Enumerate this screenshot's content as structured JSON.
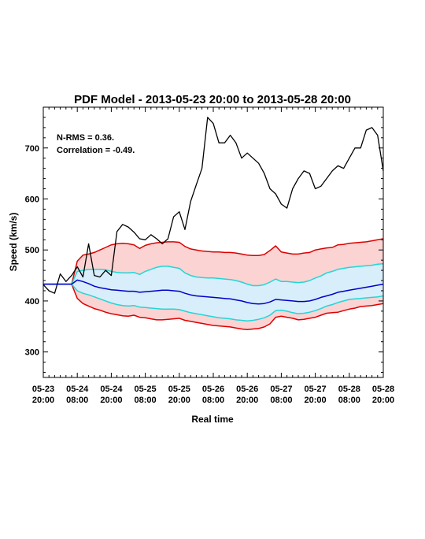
{
  "chart_data": {
    "type": "line",
    "title": "PDF Model - 2013-05-23 20:00 to 2013-05-28 20:00",
    "xlabel": "Real time",
    "ylabel": "Speed (km/s)",
    "xlim": [
      0,
      120
    ],
    "ylim": [
      250,
      780
    ],
    "y_ticks": [
      300,
      400,
      500,
      600,
      700
    ],
    "x_ticks": [
      {
        "h": 0,
        "line1": "05-23",
        "line2": "20:00"
      },
      {
        "h": 12,
        "line1": "05-24",
        "line2": "08:00"
      },
      {
        "h": 24,
        "line1": "05-24",
        "line2": "20:00"
      },
      {
        "h": 36,
        "line1": "05-25",
        "line2": "08:00"
      },
      {
        "h": 48,
        "line1": "05-25",
        "line2": "20:00"
      },
      {
        "h": 60,
        "line1": "05-26",
        "line2": "08:00"
      },
      {
        "h": 72,
        "line1": "05-26",
        "line2": "20:00"
      },
      {
        "h": 84,
        "line1": "05-27",
        "line2": "08:00"
      },
      {
        "h": 96,
        "line1": "05-27",
        "line2": "20:00"
      },
      {
        "h": 108,
        "line1": "05-28",
        "line2": "08:00"
      },
      {
        "h": 120,
        "line1": "05-28",
        "line2": "20:00"
      }
    ],
    "annotations": [
      "N-RMS = 0.36.",
      "Correlation = -0.49."
    ],
    "x_hours": [
      0,
      2,
      4,
      6,
      8,
      10,
      12,
      14,
      16,
      18,
      20,
      22,
      24,
      26,
      28,
      30,
      32,
      34,
      36,
      38,
      40,
      42,
      44,
      46,
      48,
      50,
      52,
      54,
      56,
      58,
      60,
      62,
      64,
      66,
      68,
      70,
      72,
      74,
      76,
      78,
      80,
      82,
      84,
      86,
      88,
      90,
      92,
      94,
      96,
      98,
      100,
      102,
      104,
      106,
      108,
      110,
      112,
      114,
      116,
      118,
      120
    ],
    "series": [
      {
        "role": "outer_upper",
        "color": "#dd0000",
        "values": [
          433,
          433,
          433,
          433,
          433,
          433,
          478,
          490,
          492,
          495,
          500,
          505,
          510,
          512,
          513,
          512,
          510,
          503,
          509,
          512,
          514,
          515,
          516,
          516,
          515,
          507,
          502,
          500,
          498,
          497,
          496,
          496,
          495,
          495,
          494,
          492,
          490,
          489,
          489,
          491,
          499,
          508,
          496,
          494,
          492,
          492,
          494,
          495,
          500,
          502,
          504,
          505,
          510,
          511,
          513,
          514,
          515,
          516,
          518,
          520,
          522
        ]
      },
      {
        "role": "outer_lower",
        "color": "#dd0000",
        "values": [
          433,
          433,
          433,
          433,
          433,
          433,
          405,
          395,
          390,
          385,
          382,
          378,
          375,
          373,
          371,
          370,
          372,
          368,
          367,
          365,
          363,
          363,
          364,
          365,
          366,
          362,
          360,
          358,
          356,
          354,
          352,
          351,
          350,
          349,
          347,
          345,
          344,
          345,
          346,
          349,
          355,
          368,
          370,
          368,
          366,
          363,
          364,
          366,
          368,
          372,
          376,
          377,
          378,
          381,
          384,
          386,
          389,
          390,
          391,
          393,
          395
        ]
      },
      {
        "role": "inner_upper",
        "color": "#22d6d6",
        "values": [
          433,
          433,
          433,
          433,
          433,
          433,
          458,
          460,
          462,
          462,
          462,
          461,
          458,
          456,
          455,
          455,
          456,
          452,
          458,
          462,
          466,
          468,
          468,
          466,
          464,
          455,
          450,
          447,
          446,
          445,
          445,
          444,
          443,
          442,
          440,
          437,
          433,
          430,
          430,
          432,
          437,
          443,
          438,
          438,
          437,
          436,
          437,
          440,
          445,
          449,
          455,
          458,
          462,
          464,
          466,
          467,
          468,
          469,
          470,
          472,
          473
        ]
      },
      {
        "role": "inner_lower",
        "color": "#22d6d6",
        "values": [
          433,
          433,
          433,
          433,
          433,
          433,
          420,
          415,
          412,
          408,
          404,
          400,
          396,
          393,
          391,
          390,
          391,
          388,
          387,
          386,
          385,
          384,
          384,
          384,
          383,
          380,
          377,
          375,
          373,
          371,
          369,
          367,
          366,
          365,
          363,
          362,
          361,
          362,
          364,
          367,
          372,
          381,
          382,
          380,
          377,
          375,
          376,
          378,
          381,
          385,
          390,
          393,
          397,
          400,
          403,
          404,
          405,
          406,
          407,
          408,
          410
        ]
      },
      {
        "role": "median",
        "color": "#0000cc",
        "values": [
          433,
          433,
          433,
          433,
          433,
          433,
          441,
          438,
          434,
          429,
          426,
          424,
          422,
          421,
          420,
          419,
          419,
          417,
          418,
          419,
          420,
          421,
          421,
          420,
          419,
          415,
          412,
          410,
          409,
          408,
          407,
          406,
          405,
          404,
          402,
          400,
          397,
          395,
          394,
          395,
          398,
          403,
          402,
          401,
          400,
          399,
          399,
          400,
          403,
          407,
          410,
          413,
          417,
          419,
          421,
          423,
          425,
          427,
          429,
          431,
          433
        ]
      },
      {
        "role": "observed",
        "color": "#000000",
        "values": [
          432,
          420,
          415,
          453,
          438,
          450,
          467,
          447,
          512,
          450,
          447,
          460,
          450,
          536,
          550,
          545,
          535,
          522,
          520,
          530,
          522,
          512,
          522,
          565,
          575,
          540,
          595,
          628,
          660,
          760,
          748,
          710,
          710,
          725,
          710,
          680,
          690,
          680,
          670,
          650,
          620,
          610,
          590,
          582,
          620,
          640,
          655,
          650,
          620,
          625,
          640,
          655,
          665,
          660,
          680,
          700,
          700,
          735,
          740,
          725,
          655
        ]
      }
    ]
  }
}
